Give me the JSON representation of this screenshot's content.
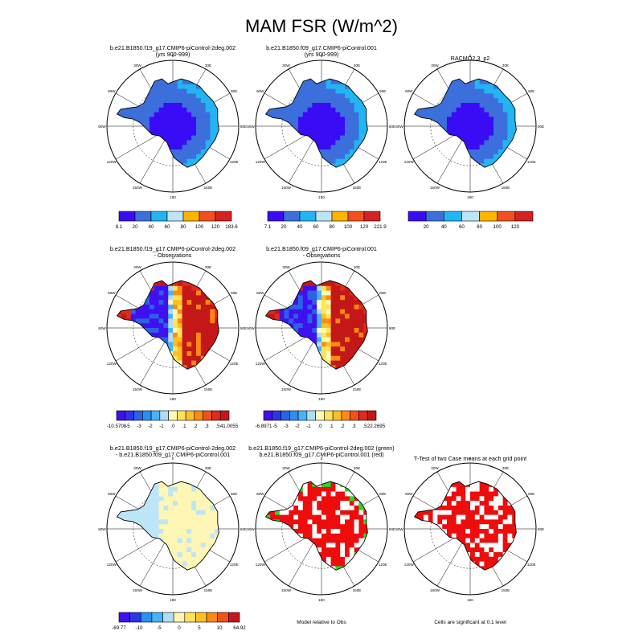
{
  "figure": {
    "title": "MAM FSR (W/m^2)"
  },
  "colors": {
    "abs_scale": [
      "#3a0cf5",
      "#3c6fdc",
      "#22b5f2",
      "#bde5f8",
      "#ffb400",
      "#f2501e",
      "#d42222"
    ],
    "diff_scale": [
      "#4010f0",
      "#2a36e8",
      "#2c62e6",
      "#2a8ff0",
      "#45b4f4",
      "#b0dcf5",
      "#fffcb8",
      "#ffe35a",
      "#ffbf22",
      "#ff8a12",
      "#f5501a",
      "#e02a1c",
      "#c41818"
    ],
    "land_fill": "#fdf6b4",
    "green": "#22dd22",
    "red": "#ee0c0c"
  },
  "panels": [
    {
      "title": [
        "b.e21.B1850.f19_g17.CMIP6-piControl-2deg.002",
        "(yrs 900-999)"
      ]
    },
    {
      "title": [
        "b.e21.B1850.f09_g17.CMIP6-piControl.001",
        "(yrs 900-999)"
      ]
    },
    {
      "title": [
        "RACMO2.3_p2"
      ]
    },
    {
      "title": [
        "b.e21.B1850.f19_g17.CMIP6-piControl-2deg.002",
        "- Observations"
      ]
    },
    {
      "title": [
        "b.e21.B1850.f09_g17.CMIP6-piControl.001",
        "- Observations"
      ]
    },
    {
      "title": [
        "b.e21.B1850.f19_g17.CMIP6-piControl-2deg.002",
        "- b.e21.B1850.f09_g17.CMIP6-piControl.001"
      ]
    },
    {
      "title": [
        "b.e21.B1850.f19_g17.CMIP6-piControl-2deg.002 (green)",
        "b.e21.B1850.f09_g17.CMIP6-piControl.001 (red)"
      ]
    },
    {
      "title": [
        "T-Test of two Case means at each grid point"
      ]
    }
  ],
  "map_labels": {
    "top": "0",
    "upper_left": "30W",
    "upper_right": "30E",
    "left_up": "60W",
    "right_up": "60E",
    "left": "90W",
    "right": "90E",
    "left_down": "120W",
    "right_down": "120E",
    "lower_left": "150W",
    "lower_right": "150E",
    "bottom": "180"
  },
  "colorbars": [
    {
      "labels": [
        "8.1",
        "20",
        "40",
        "60",
        "80",
        "100",
        "120",
        "183.6"
      ]
    },
    {
      "labels": [
        "7.1",
        "20",
        "40",
        "60",
        "80",
        "100",
        "120",
        "221.9"
      ]
    },
    {
      "labels": [
        "",
        "20",
        "40",
        "60",
        "80",
        "100",
        "120",
        ""
      ]
    },
    {
      "labels": [
        "-10.5708",
        "-5",
        "-3",
        "-2",
        "-1",
        ".0",
        ".1",
        ".2",
        ".3",
        ".5",
        "41.0055"
      ]
    },
    {
      "labels": [
        "-6.8971",
        "-5",
        "-3",
        "-2",
        "-1",
        ".0",
        ".1",
        ".2",
        ".3",
        ".5",
        "22.2695"
      ]
    },
    {
      "labels": [
        "-69.77",
        "-10",
        "-5",
        "0",
        "5",
        "10",
        "64.92"
      ]
    }
  ],
  "notes": {
    "model_relative": "Model relative to Obs",
    "significance": "Cells are significant at 0.1 level"
  },
  "chart_data": [
    {
      "type": "heatmap",
      "map": "south-polar-stereographic",
      "variable": "FSR",
      "units": "W/m^2",
      "title": "b.e21.B1850.f19_g17.CMIP6-piControl-2deg.002 (yrs 900-999)",
      "levels": [
        20,
        40,
        60,
        80,
        100,
        120
      ],
      "range": [
        8.1,
        183.6
      ]
    },
    {
      "type": "heatmap",
      "map": "south-polar-stereographic",
      "variable": "FSR",
      "units": "W/m^2",
      "title": "b.e21.B1850.f09_g17.CMIP6-piControl.001 (yrs 900-999)",
      "levels": [
        20,
        40,
        60,
        80,
        100,
        120
      ],
      "range": [
        7.1,
        221.9
      ]
    },
    {
      "type": "heatmap",
      "map": "south-polar-stereographic",
      "variable": "FSR",
      "units": "W/m^2",
      "title": "RACMO2.3_p2",
      "levels": [
        20,
        40,
        60,
        80,
        100,
        120
      ]
    },
    {
      "type": "heatmap",
      "map": "south-polar-stereographic",
      "title": "b.e21.B1850.f19_g17.CMIP6-piControl-2deg.002 - Observations",
      "levels": [
        -5,
        -3,
        -2,
        -1,
        0,
        0.1,
        0.2,
        0.3,
        0.5
      ],
      "range": [
        -10.5708,
        41.0055
      ]
    },
    {
      "type": "heatmap",
      "map": "south-polar-stereographic",
      "title": "b.e21.B1850.f09_g17.CMIP6-piControl.001 - Observations",
      "levels": [
        -5,
        -3,
        -2,
        -1,
        0,
        0.1,
        0.2,
        0.3,
        0.5
      ],
      "range": [
        -6.8971,
        22.2695
      ]
    },
    {
      "type": "heatmap",
      "map": "south-polar-stereographic",
      "title": "b.e21.B1850.f19_g17.CMIP6-piControl-2deg.002 - b.e21.B1850.f09_g17.CMIP6-piControl.001",
      "levels": [
        -10,
        -5,
        0,
        5,
        10
      ],
      "range": [
        -69.77,
        64.92
      ]
    },
    {
      "type": "heatmap",
      "map": "south-polar-stereographic",
      "title": "Model relative to Obs",
      "categories": [
        "b.e21.B1850.f19_g17.CMIP6-piControl-2deg.002 (green)",
        "b.e21.B1850.f09_g17.CMIP6-piControl.001 (red)"
      ]
    },
    {
      "type": "heatmap",
      "map": "south-polar-stereographic",
      "title": "T-Test of two Case means at each grid point",
      "note": "Cells are significant at 0.1 level"
    }
  ]
}
